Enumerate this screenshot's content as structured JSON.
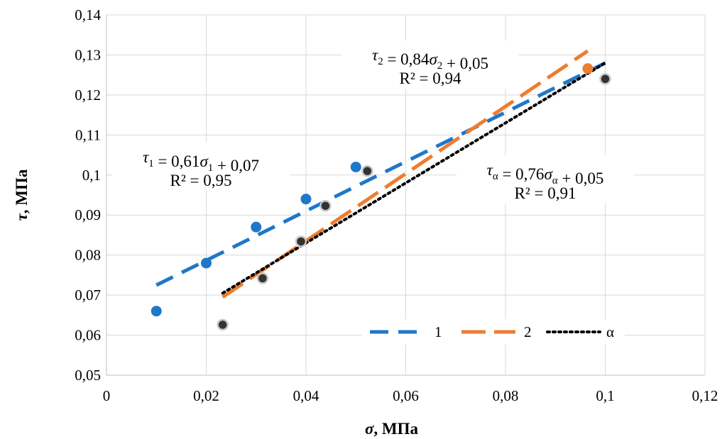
{
  "chart_data": {
    "type": "scatter",
    "xlabel_sym": "σ",
    "xlabel_unit": ", МПа",
    "ylabel_sym": "τ",
    "ylabel_unit": ", МПа",
    "xlim": [
      0,
      0.12
    ],
    "ylim": [
      0.05,
      0.14
    ],
    "xticks": [
      0,
      0.02,
      0.04,
      0.06,
      0.08,
      0.1,
      0.12
    ],
    "xtick_labels": [
      "0",
      "0,02",
      "0,04",
      "0,06",
      "0,08",
      "0,1",
      "0,12"
    ],
    "yticks": [
      0.05,
      0.06,
      0.07,
      0.08,
      0.09,
      0.1,
      0.11,
      0.12,
      0.13,
      0.14
    ],
    "ytick_labels": [
      "0,05",
      "0,06",
      "0,07",
      "0,08",
      "0,09",
      "0,1",
      "0,11",
      "0,12",
      "0,13",
      "0,14"
    ],
    "grid": true,
    "legend_position": "bottom-right",
    "series": [
      {
        "name": "1",
        "color": "#1f77c9",
        "marker": "circle",
        "line_style": "dashed",
        "x": [
          0.01,
          0.02,
          0.03,
          0.04,
          0.05
        ],
        "y": [
          0.066,
          0.078,
          0.087,
          0.094,
          0.102
        ],
        "trend": {
          "x": [
            0.01,
            0.1
          ],
          "y": [
            0.0725,
            0.128
          ]
        }
      },
      {
        "name": "2",
        "color": "#ed7d31",
        "marker": "circle",
        "line_style": "long-dashed",
        "x": [
          0.0233,
          0.0313,
          0.039,
          0.0439,
          0.0523,
          0.0965
        ],
        "y": [
          0.0626,
          0.0742,
          0.0834,
          0.0923,
          0.101,
          0.1266
        ],
        "trend": {
          "x": [
            0.0233,
            0.0965
          ],
          "y": [
            0.0695,
            0.131
          ]
        }
      },
      {
        "name": "α",
        "color": "#000000",
        "marker": "circle",
        "line_style": "dotted",
        "x": [
          0.0233,
          0.0313,
          0.039,
          0.0439,
          0.0523,
          0.1
        ],
        "y": [
          0.0626,
          0.0742,
          0.0834,
          0.0923,
          0.101,
          0.124
        ],
        "trend": {
          "x": [
            0.0233,
            0.1
          ],
          "y": [
            0.0705,
            0.128
          ]
        }
      }
    ],
    "annotations": [
      {
        "id": "eq1",
        "sym": "τ",
        "sub": "1",
        "mid": " = 0,61",
        "sym2": "σ",
        "sub2": "1",
        "tail": " + 0,07",
        "r2": "R² = 0,95"
      },
      {
        "id": "eq2",
        "sym": "τ",
        "sub": "2",
        "mid": " = 0,84",
        "sym2": "σ",
        "sub2": "2",
        "tail": " + 0,05",
        "r2": "R² = 0,94"
      },
      {
        "id": "eqa",
        "sym": "τ",
        "sub": "α",
        "mid": " = 0,76",
        "sym2": "σ",
        "sub2": "α",
        "tail": " + 0,05",
        "r2": "R² = 0,91"
      }
    ]
  }
}
